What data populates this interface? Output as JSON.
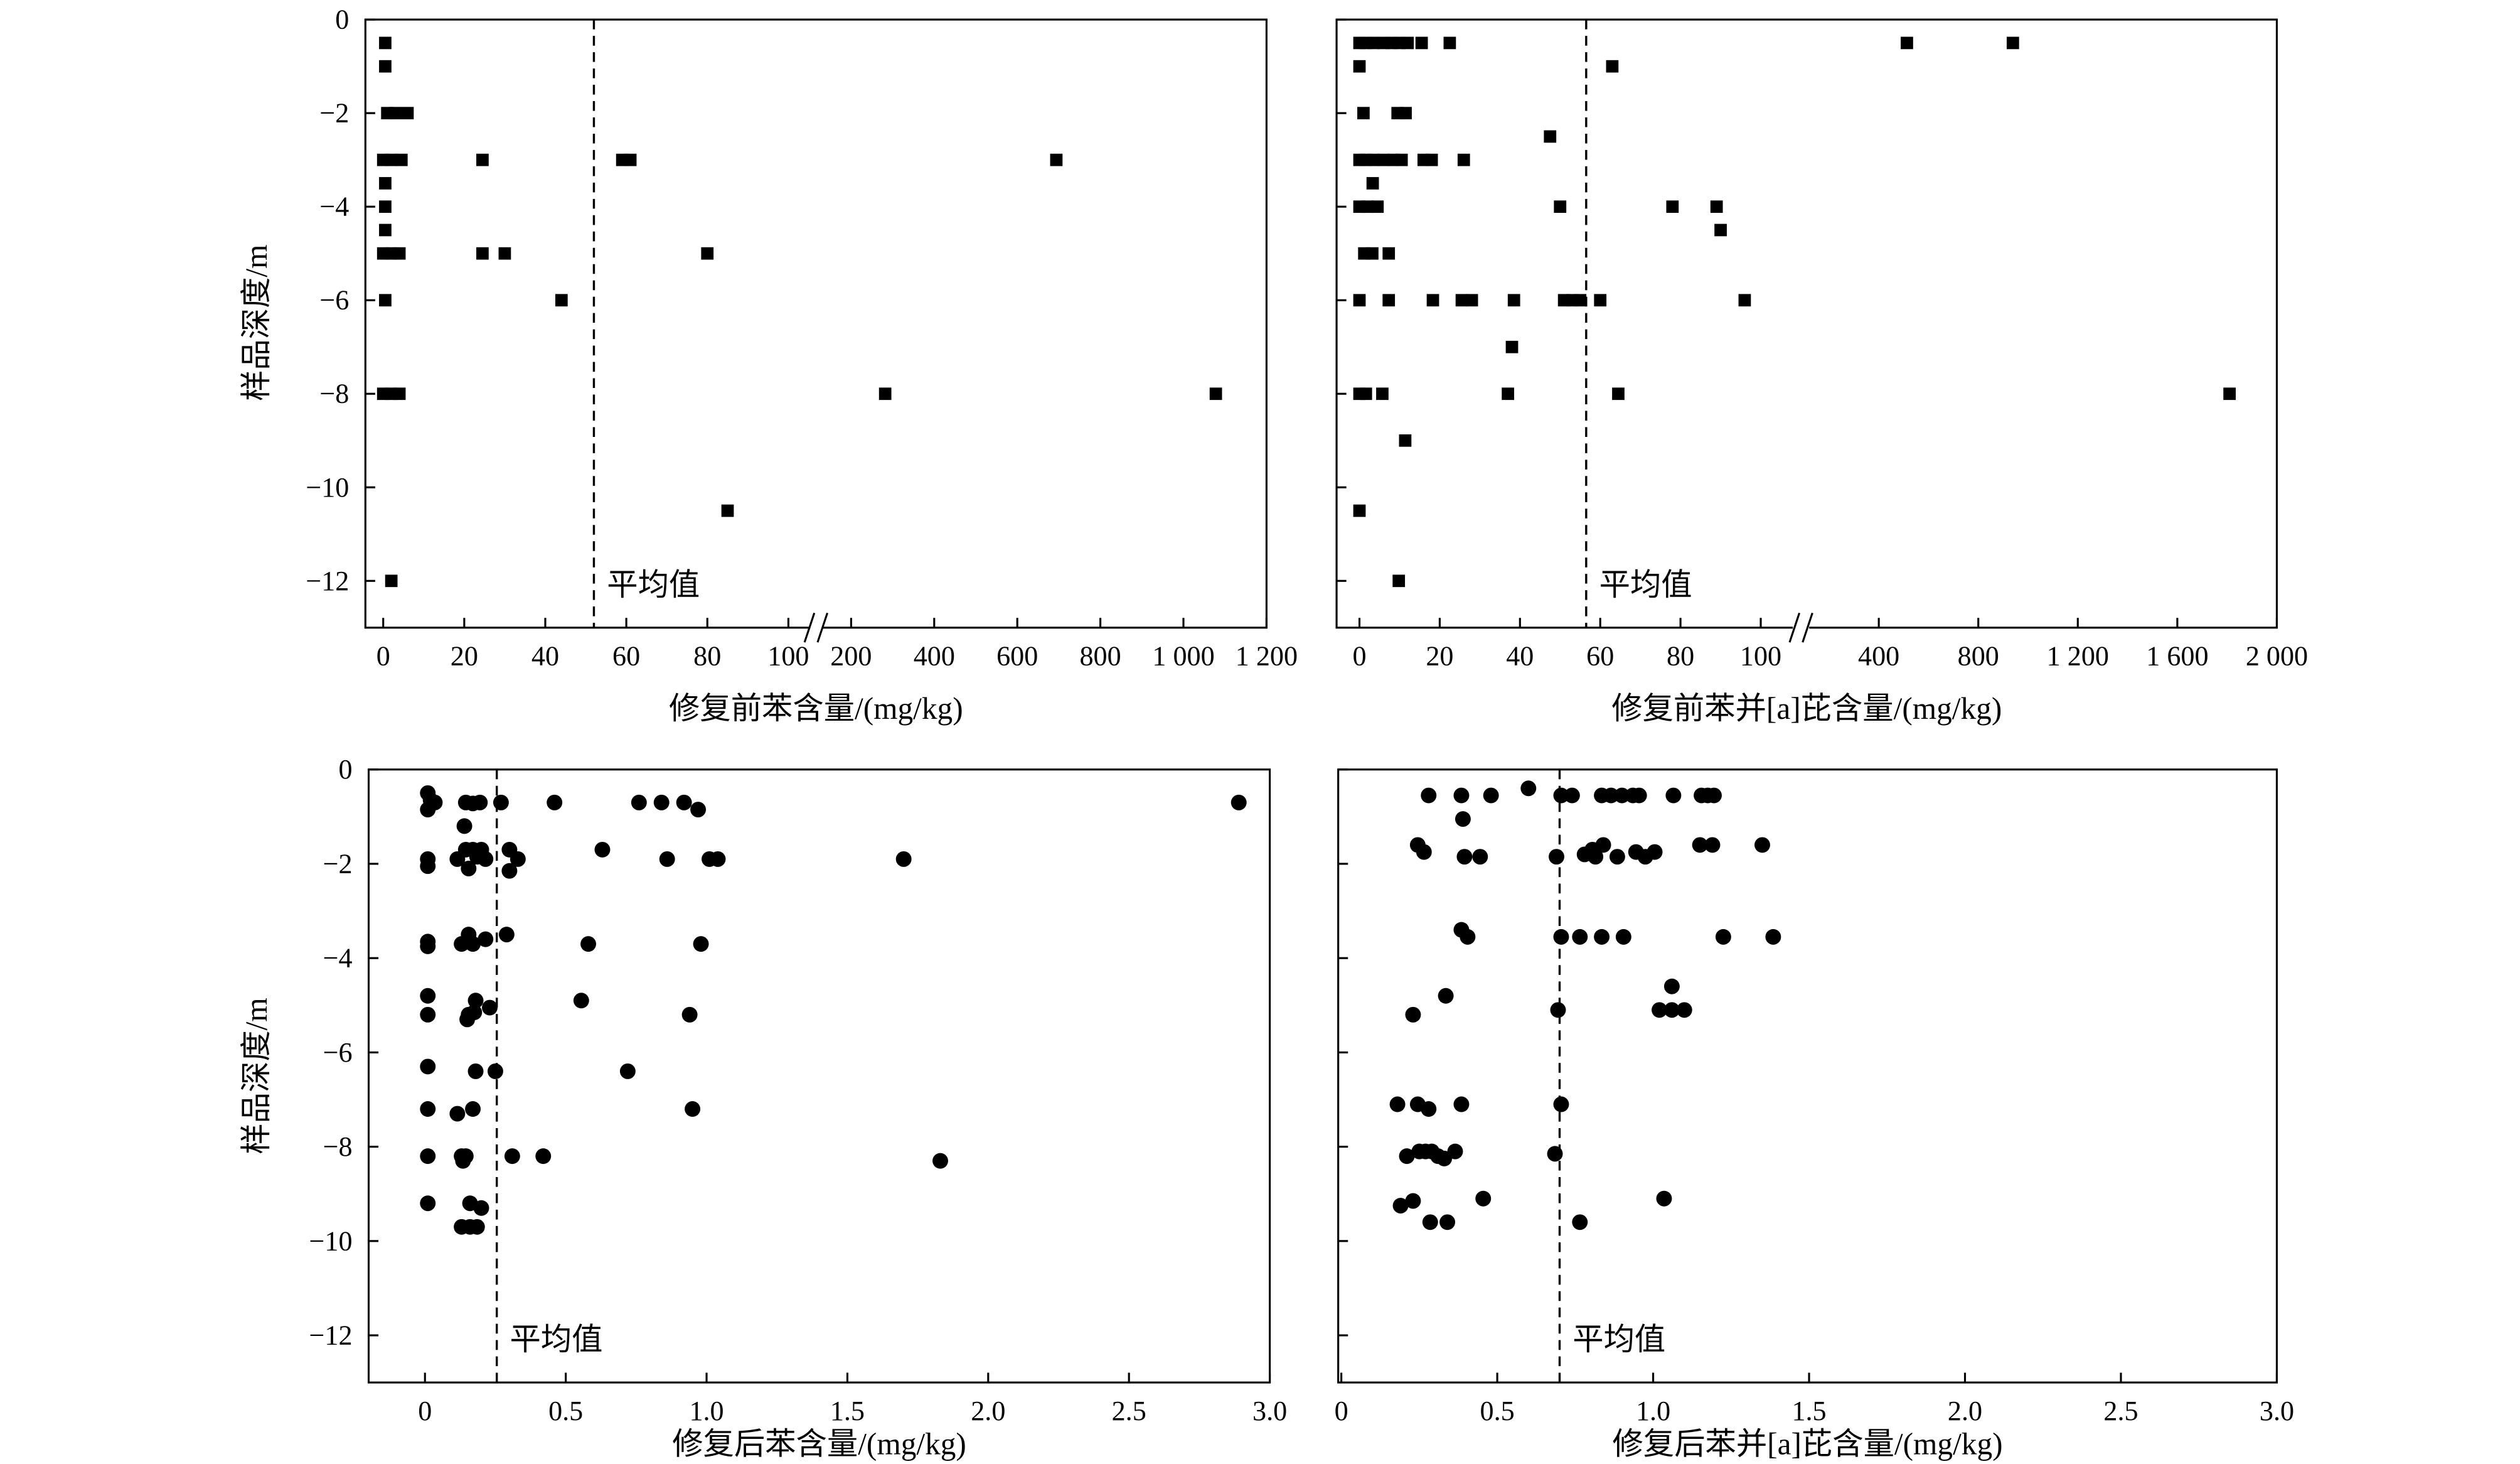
{
  "chart_data": [
    {
      "type": "scatter",
      "marker": "square",
      "color": "#000000",
      "grid": false,
      "xlabel": "修复前苯含量/(mg/kg)",
      "ylabel": "样品深度/m",
      "ylim": [
        -13,
        0
      ],
      "yticks": [
        0,
        -2,
        -4,
        -6,
        -8,
        -10,
        -12
      ],
      "ytick_labels": [
        "0",
        "−2",
        "−4",
        "−6",
        "−8",
        "−10",
        "−12"
      ],
      "x_axis_break": true,
      "x_segments": [
        [
          -4.4,
          105
        ],
        [
          133,
          1200
        ]
      ],
      "xticks": [
        0,
        20,
        40,
        60,
        80,
        100,
        200,
        400,
        600,
        800,
        1000,
        1200
      ],
      "xtick_labels": [
        "0",
        "20",
        "40",
        "60",
        "80",
        "100",
        "200",
        "400",
        "600",
        "800",
        "1 000",
        "1 200"
      ],
      "mean_line": {
        "x": 52,
        "label": "平均值"
      },
      "x": [
        0.5,
        0.5,
        1,
        3,
        6,
        0,
        2,
        4.5,
        24.5,
        59,
        61,
        694,
        0.5,
        0.5,
        0.5,
        0,
        2,
        4,
        24.5,
        30,
        80,
        0.5,
        44,
        0,
        2,
        4,
        282,
        1078,
        85,
        2
      ],
      "y": [
        -0.5,
        -1,
        -2,
        -2,
        -2,
        -3,
        -3,
        -3,
        -3,
        -3,
        -3,
        -3,
        -3.5,
        -4,
        -4.5,
        -5,
        -5,
        -5,
        -5,
        -5,
        -5,
        -6,
        -6,
        -8,
        -8,
        -8,
        -8,
        -8,
        -10.5,
        -12
      ]
    },
    {
      "type": "scatter",
      "marker": "square",
      "color": "#000000",
      "grid": false,
      "xlabel": "修复前苯并[a]芘含量/(mg/kg)",
      "ylim": [
        -13,
        0
      ],
      "yticks": [
        0,
        -2,
        -4,
        -6,
        -8,
        -10,
        -12
      ],
      "x_axis_break": true,
      "x_segments": [
        [
          -5.7,
          108
        ],
        [
          120,
          2000
        ]
      ],
      "xticks": [
        0,
        20,
        40,
        60,
        80,
        100,
        400,
        800,
        1200,
        1600,
        2000
      ],
      "xtick_labels": [
        "0",
        "20",
        "40",
        "60",
        "80",
        "100",
        "400",
        "800",
        "1 200",
        "1 600",
        "2 000"
      ],
      "mean_line": {
        "x": 56.5,
        "label": "平均值"
      },
      "x": [
        0,
        1.5,
        3.5,
        6,
        8,
        10,
        12,
        15.5,
        22.5,
        513,
        939,
        0,
        63,
        1,
        9.5,
        11.5,
        47.5,
        0,
        1.5,
        3.5,
        6,
        8.5,
        10.5,
        16,
        18,
        26,
        3.3,
        0,
        2,
        4.5,
        50,
        78,
        89,
        90,
        1.2,
        3.2,
        7.3,
        0,
        7.3,
        18.3,
        25.5,
        28,
        38.5,
        51,
        53,
        55,
        60,
        96,
        38,
        0,
        1.6,
        5.7,
        37,
        64.5,
        1810,
        11.4,
        0,
        9.8
      ],
      "y": [
        -0.5,
        -0.5,
        -0.5,
        -0.5,
        -0.5,
        -0.5,
        -0.5,
        -0.5,
        -0.5,
        -0.5,
        -0.5,
        -1,
        -1,
        -2,
        -2,
        -2,
        -2.5,
        -3,
        -3,
        -3,
        -3,
        -3,
        -3,
        -3,
        -3,
        -3,
        -3.5,
        -4,
        -4,
        -4,
        -4,
        -4,
        -4,
        -4.5,
        -5,
        -5,
        -5,
        -6,
        -6,
        -6,
        -6,
        -6,
        -6,
        -6,
        -6,
        -6,
        -6,
        -6,
        -7,
        -8,
        -8,
        -8,
        -8,
        -8,
        -8,
        -9,
        -10.5,
        -12
      ]
    },
    {
      "type": "scatter",
      "marker": "circle",
      "color": "#000000",
      "grid": false,
      "xlabel": "修复后苯含量/(mg/kg)",
      "ylabel": "样品深度/m",
      "ylim": [
        -13,
        0
      ],
      "yticks": [
        0,
        -2,
        -4,
        -6,
        -8,
        -10,
        -12
      ],
      "ytick_labels": [
        "0",
        "−2",
        "−4",
        "−6",
        "−8",
        "−10",
        "−12"
      ],
      "xlim": [
        -0.2,
        3.0
      ],
      "xticks": [
        0,
        0.5,
        1.0,
        1.5,
        2.0,
        2.5,
        3.0
      ],
      "xtick_labels": [
        "0",
        "0.5",
        "1.0",
        "1.5",
        "2.0",
        "2.5",
        "3.0"
      ],
      "mean_line": {
        "x": 0.255,
        "label": "平均值"
      },
      "x": [
        0.01,
        0.02,
        0.035,
        0.01,
        0.145,
        0.17,
        0.195,
        0.27,
        0.46,
        0.76,
        0.84,
        0.92,
        0.97,
        2.89,
        0.14,
        0.145,
        0.17,
        0.2,
        0.3,
        0.63,
        0.01,
        0.115,
        0.185,
        0.215,
        0.33,
        0.86,
        1.01,
        1.04,
        1.7,
        0.01,
        0.155,
        0.3,
        0.155,
        0.29,
        0.215,
        0.01,
        0.01,
        0.13,
        0.17,
        0.58,
        0.98,
        0.01,
        0.18,
        0.555,
        0.23,
        0.01,
        0.155,
        0.175,
        0.94,
        0.15,
        0.01,
        0.18,
        0.25,
        0.72,
        0.01,
        0.17,
        0.115,
        0.95,
        0.01,
        0.13,
        0.145,
        0.135,
        0.31,
        0.42,
        1.83,
        0.01,
        0.16,
        0.2,
        0.13,
        0.16,
        0.185
      ],
      "y": [
        -0.5,
        -0.65,
        -0.7,
        -0.85,
        -0.7,
        -0.72,
        -0.7,
        -0.7,
        -0.7,
        -0.7,
        -0.7,
        -0.7,
        -0.85,
        -0.7,
        -1.2,
        -1.7,
        -1.7,
        -1.7,
        -1.7,
        -1.7,
        -1.9,
        -1.9,
        -1.85,
        -1.9,
        -1.9,
        -1.9,
        -1.9,
        -1.9,
        -1.9,
        -2.05,
        -2.1,
        -2.15,
        -3.5,
        -3.5,
        -3.6,
        -3.65,
        -3.75,
        -3.7,
        -3.7,
        -3.7,
        -3.7,
        -4.8,
        -4.9,
        -4.9,
        -5.05,
        -5.2,
        -5.2,
        -5.15,
        -5.2,
        -5.3,
        -6.3,
        -6.4,
        -6.4,
        -6.4,
        -7.2,
        -7.2,
        -7.3,
        -7.2,
        -8.2,
        -8.2,
        -8.2,
        -8.3,
        -8.2,
        -8.2,
        -8.3,
        -9.2,
        -9.2,
        -9.3,
        -9.7,
        -9.7,
        -9.7
      ]
    },
    {
      "type": "scatter",
      "marker": "circle",
      "color": "#000000",
      "grid": false,
      "xlabel": "修复后苯并[a]芘含量/(mg/kg)",
      "ylim": [
        -13,
        0
      ],
      "yticks": [
        0,
        -2,
        -4,
        -6,
        -8,
        -10,
        -12
      ],
      "xlim": [
        -0.01,
        3.0
      ],
      "xticks": [
        0,
        0.5,
        1.0,
        1.5,
        2.0,
        2.5,
        3.0
      ],
      "xtick_labels": [
        "0",
        "0.5",
        "1.0",
        "1.5",
        "2.0",
        "2.5",
        "3.0"
      ],
      "mean_line": {
        "x": 0.7,
        "label": "平均值"
      },
      "x": [
        0.6,
        0.28,
        0.385,
        0.48,
        0.705,
        0.74,
        0.835,
        0.865,
        0.9,
        0.935,
        0.955,
        1.065,
        1.155,
        1.175,
        1.195,
        0.39,
        0.245,
        0.265,
        1.15,
        1.19,
        1.35,
        0.395,
        0.445,
        0.69,
        0.78,
        0.805,
        0.84,
        0.815,
        0.885,
        0.945,
        0.975,
        1.005,
        0.385,
        0.405,
        0.705,
        0.765,
        0.835,
        0.905,
        1.225,
        1.385,
        1.06,
        0.335,
        0.695,
        1.02,
        1.06,
        1.1,
        0.23,
        0.18,
        0.245,
        0.28,
        0.385,
        0.705,
        0.25,
        0.27,
        0.29,
        0.365,
        0.685,
        0.21,
        0.31,
        0.33,
        0.455,
        1.035,
        0.19,
        0.23,
        0.285,
        0.34,
        0.765
      ],
      "y": [
        -0.4,
        -0.55,
        -0.55,
        -0.55,
        -0.55,
        -0.55,
        -0.55,
        -0.55,
        -0.55,
        -0.55,
        -0.55,
        -0.55,
        -0.55,
        -0.55,
        -0.55,
        -1.05,
        -1.6,
        -1.75,
        -1.6,
        -1.6,
        -1.6,
        -1.85,
        -1.85,
        -1.85,
        -1.8,
        -1.7,
        -1.6,
        -1.85,
        -1.85,
        -1.75,
        -1.85,
        -1.75,
        -3.4,
        -3.55,
        -3.55,
        -3.55,
        -3.55,
        -3.55,
        -3.55,
        -3.55,
        -4.6,
        -4.8,
        -5.1,
        -5.1,
        -5.1,
        -5.1,
        -5.2,
        -7.1,
        -7.1,
        -7.2,
        -7.1,
        -7.1,
        -8.1,
        -8.1,
        -8.1,
        -8.1,
        -8.15,
        -8.2,
        -8.2,
        -8.25,
        -9.1,
        -9.1,
        -9.25,
        -9.15,
        -9.6,
        -9.6,
        -9.6
      ]
    }
  ]
}
